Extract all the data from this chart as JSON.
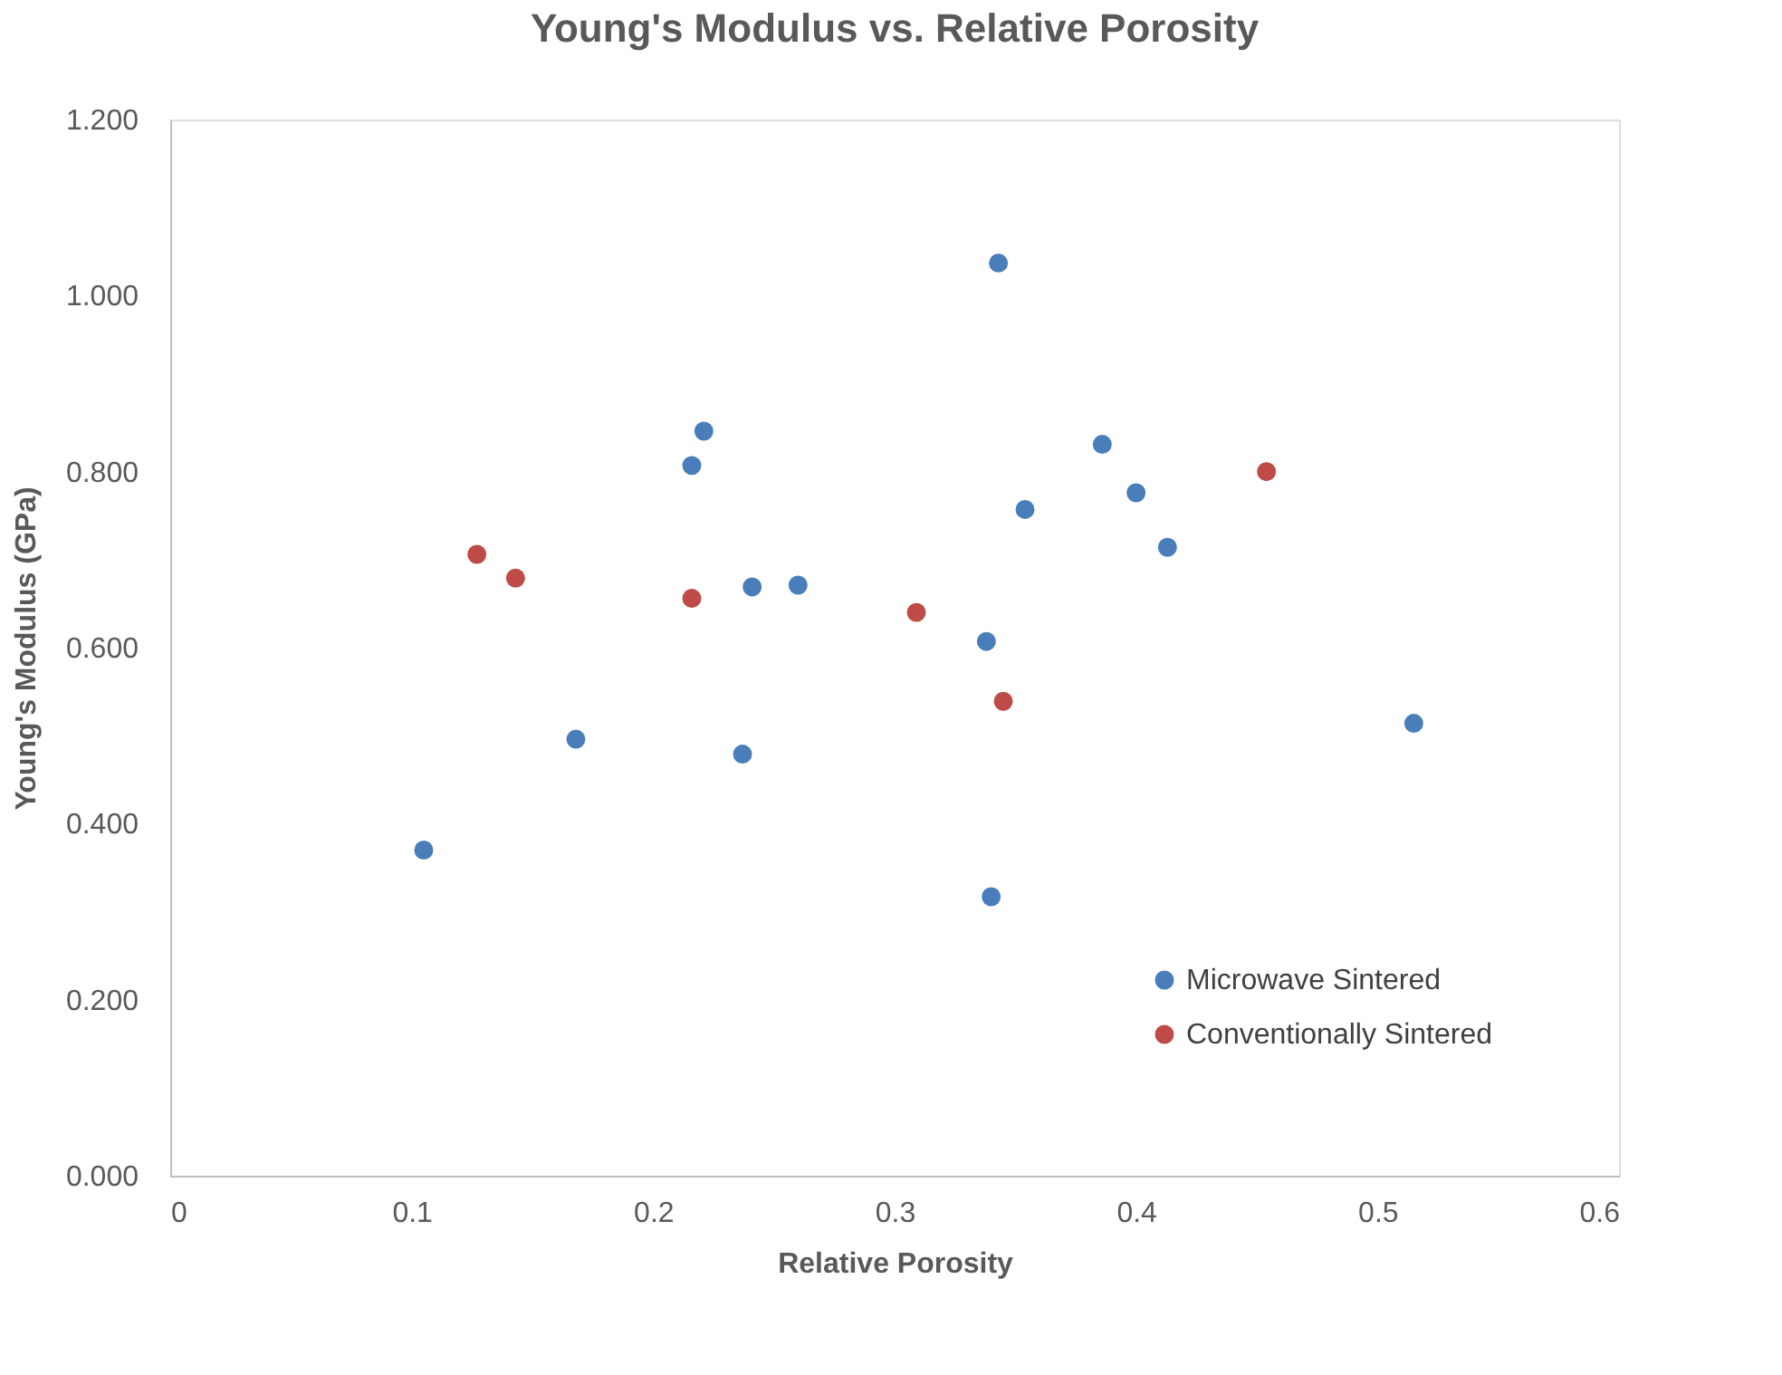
{
  "chart_data": {
    "type": "scatter",
    "title": "Young's Modulus vs. Relative Porosity",
    "xlabel": "Relative Porosity",
    "ylabel": "Young's Modulus (GPa)",
    "xlim": [
      0,
      0.6
    ],
    "xticks": [
      0,
      0.1,
      0.2,
      0.3,
      0.4,
      0.5,
      0.6
    ],
    "ylim": [
      0,
      1.2
    ],
    "yticks": [
      {
        "value": 0,
        "label": "0.000"
      },
      {
        "value": 0.2,
        "label": "0.200"
      },
      {
        "value": 0.4,
        "label": "0.400"
      },
      {
        "value": 0.6,
        "label": "0.600"
      },
      {
        "value": 0.8,
        "label": "0.800"
      },
      {
        "value": 1.0,
        "label": "1.000"
      },
      {
        "value": 1.2,
        "label": "1.200"
      }
    ],
    "grid": false,
    "legend": "bottom right",
    "marker": "circle",
    "series": [
      {
        "name": "Microwave Sintered",
        "color": "#4a7ebb",
        "x": [
          0.105,
          0.168,
          0.216,
          0.221,
          0.237,
          0.241,
          0.26,
          0.338,
          0.34,
          0.343,
          0.354,
          0.386,
          0.4,
          0.413,
          0.515
        ],
        "values": [
          0.37,
          0.496,
          0.807,
          0.846,
          0.479,
          0.669,
          0.671,
          0.607,
          0.317,
          1.037,
          0.757,
          0.831,
          0.776,
          0.714,
          0.514
        ]
      },
      {
        "name": "Conventionally Sintered",
        "color": "#be4b48",
        "x": [
          0.127,
          0.143,
          0.216,
          0.309,
          0.345,
          0.454
        ],
        "values": [
          0.706,
          0.679,
          0.656,
          0.64,
          0.539,
          0.8
        ]
      }
    ]
  }
}
